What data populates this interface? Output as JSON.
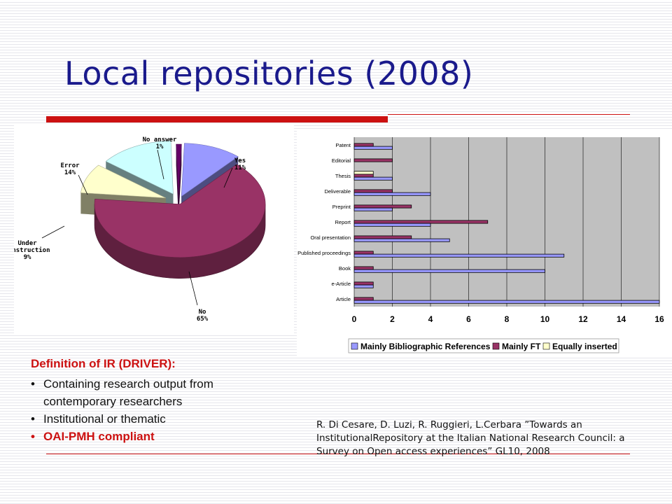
{
  "slide": {
    "title": "Local repositories (2008)",
    "definition": {
      "heading": "Definition of IR (DRIVER):",
      "items": [
        {
          "line1": "Containing research output from",
          "line2": "contemporary researchers"
        },
        {
          "line1": "Institutional or thematic"
        },
        {
          "line1": "OAI-PMH compliant",
          "highlight": true
        }
      ]
    },
    "citation": "R. Di Cesare, D. Luzi, R. Ruggieri, L.Cerbara ”Towards an InstitutionalRepository at the Italian National Research Council: a Survey on Open access experiences” GL10, 2008"
  },
  "colors": {
    "title": "#1a1a8c",
    "accent_red": "#cc1111",
    "pie_yes": "#9999ff",
    "pie_no": "#993366",
    "pie_under_construction": "#ffffcc",
    "pie_error": "#ccffff",
    "pie_no_answer": "#660066",
    "bar_bibliographic": "#9999ff",
    "bar_fulltext": "#993366",
    "bar_equally": "#ffffcc",
    "plot_bg": "#c0c0c0"
  },
  "chart_data": [
    {
      "type": "pie",
      "labels": [
        "Yes",
        "No",
        "Under construction",
        "Error",
        "No answer"
      ],
      "label_lines": [
        [
          "Yes",
          "11%"
        ],
        [
          "No",
          "65%"
        ],
        [
          "Under",
          "construction",
          "9%"
        ],
        [
          "Error",
          "14%"
        ],
        [
          "No answer",
          "1%"
        ]
      ],
      "values": [
        11,
        65,
        9,
        14,
        1
      ],
      "colors": [
        "#9999ff",
        "#993366",
        "#ffffcc",
        "#ccffff",
        "#660066"
      ]
    },
    {
      "type": "bar",
      "orientation": "horizontal",
      "categories": [
        "Patent",
        "Editorial",
        "Thesis",
        "Deliverable",
        "Preprint",
        "Report",
        "Oral presentation",
        "Published proceedings",
        "Book",
        "e-Article",
        "Article"
      ],
      "series": [
        {
          "name": "Mainly Bibliographic References",
          "color": "#9999ff",
          "values": [
            2,
            0,
            2,
            4,
            2,
            4,
            5,
            11,
            10,
            1,
            16
          ]
        },
        {
          "name": "Mainly FT",
          "color": "#993366",
          "values": [
            1,
            2,
            1,
            2,
            3,
            7,
            3,
            1,
            1,
            1,
            1
          ]
        },
        {
          "name": "Equally inserted",
          "color": "#ffffcc",
          "values": [
            0,
            0,
            1,
            0,
            0,
            0,
            0,
            0,
            0,
            0,
            0
          ]
        }
      ],
      "xlim": [
        0,
        16
      ],
      "xticks": [
        0,
        2,
        4,
        6,
        8,
        10,
        12,
        14,
        16
      ],
      "grid": true,
      "legend": "bottom"
    }
  ]
}
